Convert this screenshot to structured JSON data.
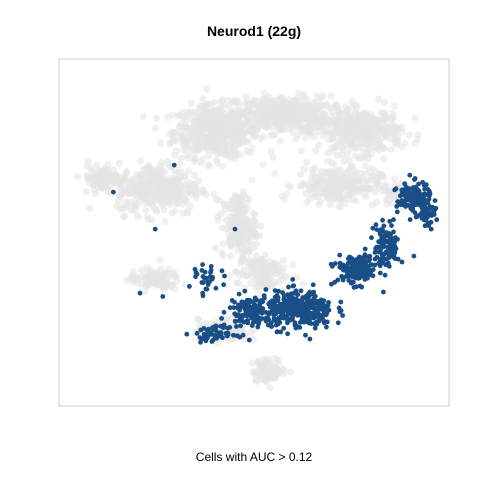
{
  "chart_data": {
    "type": "scatter",
    "title": "Neurod1 (22g)",
    "xlabel": "Cells with AUC > 0.12",
    "ylabel": "",
    "axes_visible": false,
    "grid": false,
    "legend": "none",
    "series": [
      {
        "color": "#e3e3e3",
        "opacity": 0.55,
        "clusters": [
          {
            "center": [
              0.4,
              0.8
            ],
            "spread": [
              0.1,
              0.07
            ],
            "n": 520
          },
          {
            "center": [
              0.58,
              0.85
            ],
            "spread": [
              0.11,
              0.05
            ],
            "n": 420
          },
          {
            "center": [
              0.78,
              0.8
            ],
            "spread": [
              0.1,
              0.06
            ],
            "n": 360
          },
          {
            "center": [
              0.72,
              0.64
            ],
            "spread": [
              0.1,
              0.05
            ],
            "n": 240
          },
          {
            "center": [
              0.25,
              0.63
            ],
            "spread": [
              0.1,
              0.07
            ],
            "n": 320
          },
          {
            "center": [
              0.1,
              0.66
            ],
            "spread": [
              0.05,
              0.03
            ],
            "n": 90
          },
          {
            "center": [
              0.46,
              0.52
            ],
            "spread": [
              0.04,
              0.09
            ],
            "n": 170
          },
          {
            "center": [
              0.52,
              0.38
            ],
            "spread": [
              0.06,
              0.06
            ],
            "n": 120
          },
          {
            "center": [
              0.24,
              0.36
            ],
            "spread": [
              0.06,
              0.03
            ],
            "n": 90
          },
          {
            "center": [
              0.42,
              0.21
            ],
            "spread": [
              0.06,
              0.03
            ],
            "n": 90
          },
          {
            "center": [
              0.54,
              0.09
            ],
            "spread": [
              0.04,
              0.03
            ],
            "n": 90
          },
          {
            "center": [
              0.88,
              0.62
            ],
            "spread": [
              0.04,
              0.03
            ],
            "n": 60
          }
        ]
      },
      {
        "color": "#1a4e86",
        "opacity": 1,
        "clusters": [
          {
            "center": [
              0.62,
              0.27
            ],
            "spread": [
              0.08,
              0.05
            ],
            "n": 340
          },
          {
            "center": [
              0.49,
              0.27
            ],
            "spread": [
              0.05,
              0.04
            ],
            "n": 120
          },
          {
            "center": [
              0.4,
              0.2
            ],
            "spread": [
              0.05,
              0.02
            ],
            "n": 60
          },
          {
            "center": [
              0.77,
              0.39
            ],
            "spread": [
              0.05,
              0.04
            ],
            "n": 160
          },
          {
            "center": [
              0.85,
              0.46
            ],
            "spread": [
              0.03,
              0.06
            ],
            "n": 110
          },
          {
            "center": [
              0.92,
              0.6
            ],
            "spread": [
              0.04,
              0.04
            ],
            "n": 150
          },
          {
            "center": [
              0.96,
              0.55
            ],
            "spread": [
              0.02,
              0.03
            ],
            "n": 40
          },
          {
            "center": [
              0.38,
              0.36
            ],
            "spread": [
              0.03,
              0.04
            ],
            "n": 30
          }
        ],
        "points": [
          [
            0.29,
            0.7
          ],
          [
            0.13,
            0.62
          ],
          [
            0.24,
            0.51
          ],
          [
            0.45,
            0.51
          ],
          [
            0.2,
            0.32
          ],
          [
            0.26,
            0.31
          ],
          [
            0.33,
            0.34
          ],
          [
            0.91,
            0.67
          ]
        ]
      }
    ]
  }
}
